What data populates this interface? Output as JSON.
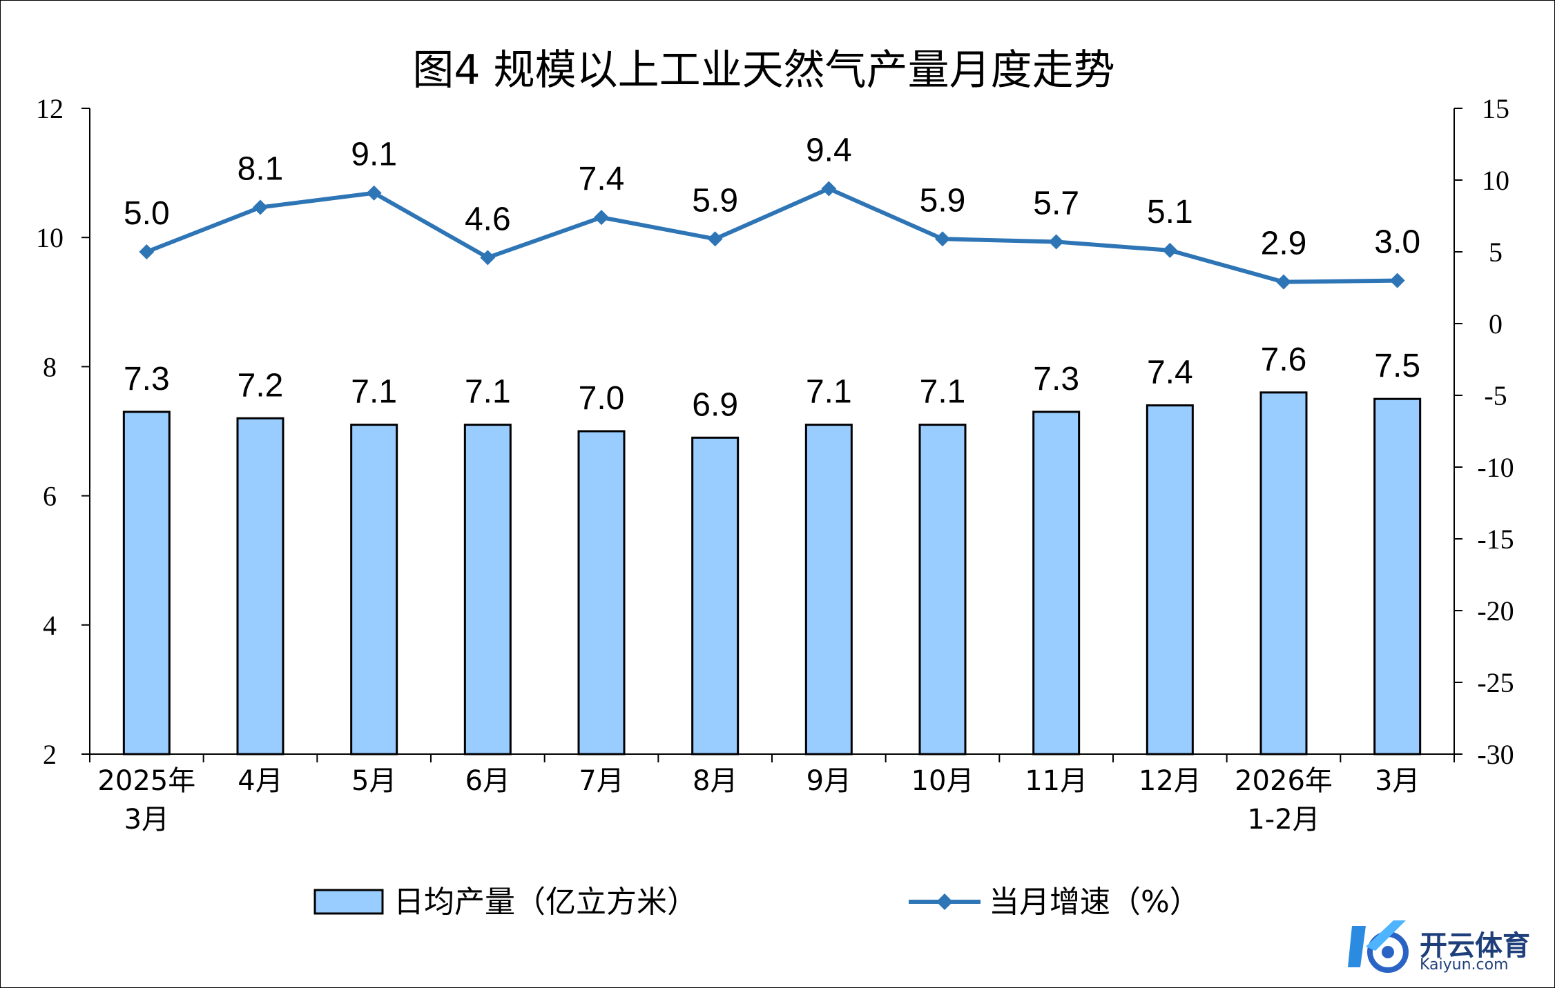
{
  "chart_data": {
    "type": "bar",
    "title": "图4  规模以上工业天然气产量月度走势",
    "categories": [
      [
        "2025年",
        "3月"
      ],
      [
        "4月"
      ],
      [
        "5月"
      ],
      [
        "6月"
      ],
      [
        "7月"
      ],
      [
        "8月"
      ],
      [
        "9月"
      ],
      [
        "10月"
      ],
      [
        "11月"
      ],
      [
        "12月"
      ],
      [
        "2026年",
        "1-2月"
      ],
      [
        "3月"
      ]
    ],
    "series": [
      {
        "name": "日均产量（亿立方米）",
        "type": "bar",
        "axis": "left",
        "color": "#99ccff",
        "values": [
          7.3,
          7.2,
          7.1,
          7.1,
          7.0,
          6.9,
          7.1,
          7.1,
          7.3,
          7.4,
          7.6,
          7.5
        ],
        "labels": [
          "7.3",
          "7.2",
          "7.1",
          "7.1",
          "7.0",
          "6.9",
          "7.1",
          "7.1",
          "7.3",
          "7.4",
          "7.6",
          "7.5"
        ]
      },
      {
        "name": "当月增速（%）",
        "type": "line",
        "axis": "right",
        "color": "#2e75b6",
        "marker": "diamond",
        "values": [
          5.0,
          8.1,
          9.1,
          4.6,
          7.4,
          5.9,
          9.4,
          5.9,
          5.7,
          5.1,
          2.9,
          3.0
        ],
        "labels": [
          "5.0",
          "8.1",
          "9.1",
          "4.6",
          "7.4",
          "5.9",
          "9.4",
          "5.9",
          "5.7",
          "5.1",
          "2.9",
          "3.0"
        ]
      }
    ],
    "y_left": {
      "lim": [
        2,
        12
      ],
      "ticks": [
        "2",
        "4",
        "6",
        "8",
        "10",
        "12"
      ]
    },
    "y_right": {
      "lim": [
        -30,
        15
      ],
      "ticks": [
        "-30",
        "-25",
        "-20",
        "-15",
        "-10",
        "-5",
        "0",
        "5",
        "10",
        "15"
      ]
    },
    "grid": false,
    "legend_position": "bottom"
  },
  "watermark": {
    "text": "开云体育",
    "sub": "Kaiyun.com"
  }
}
